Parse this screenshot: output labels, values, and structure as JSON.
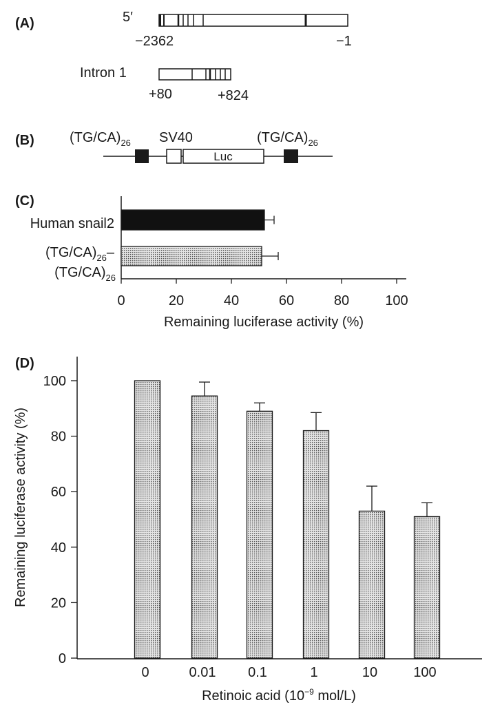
{
  "panels": {
    "A": {
      "label": "(A)",
      "promoter": {
        "end_label": "5′",
        "start": "−2362",
        "end": "−1"
      },
      "intron": {
        "name": "Intron 1",
        "start": "+80",
        "end": "+824"
      }
    },
    "B": {
      "label": "(B)",
      "left_repeat": {
        "base": "(TG/CA)",
        "sub": "26"
      },
      "promoter": "SV40",
      "reporter": "Luc",
      "right_repeat": {
        "base": "(TG/CA)",
        "sub": "26"
      }
    },
    "C": {
      "label": "(C)"
    },
    "D": {
      "label": "(D)"
    }
  },
  "colors": {
    "ink": "#1a1a1a",
    "solid_bar": "#111111",
    "dotted_bar": "#d6d6d6"
  },
  "chart_data": [
    {
      "panel": "C",
      "type": "bar",
      "orientation": "horizontal",
      "categories": [
        "Human snail2",
        "(TG/CA)26-(TG/CA)26"
      ],
      "category_labels": [
        {
          "line1": "Human snail2"
        },
        {
          "line1_base": "(TG/CA)",
          "line1_sub": "26",
          "line1_suffix": "–",
          "line2_base": "(TG/CA)",
          "line2_sub": "26"
        }
      ],
      "values": [
        52,
        51
      ],
      "errors": [
        3.5,
        6
      ],
      "fills": [
        "solid",
        "dotted"
      ],
      "xlabel": "Remaining luciferase activity (%)",
      "xlim": [
        0,
        100
      ],
      "xticks": [
        0,
        20,
        40,
        60,
        80,
        100
      ],
      "grid": false
    },
    {
      "panel": "D",
      "type": "bar",
      "orientation": "vertical",
      "categories": [
        "0",
        "0.01",
        "0.1",
        "1",
        "10",
        "100"
      ],
      "values": [
        100,
        94.5,
        89,
        82,
        53,
        51
      ],
      "errors": [
        0,
        5,
        3,
        6.5,
        9,
        5
      ],
      "xlabel_base": "Retinoic acid (10",
      "xlabel_sup": "−9",
      "xlabel_tail": " mol/L)",
      "ylabel": "Remaining luciferase activity (%)",
      "ylim": [
        0,
        100
      ],
      "yticks": [
        0,
        20,
        40,
        60,
        80,
        100
      ],
      "grid": false
    }
  ]
}
